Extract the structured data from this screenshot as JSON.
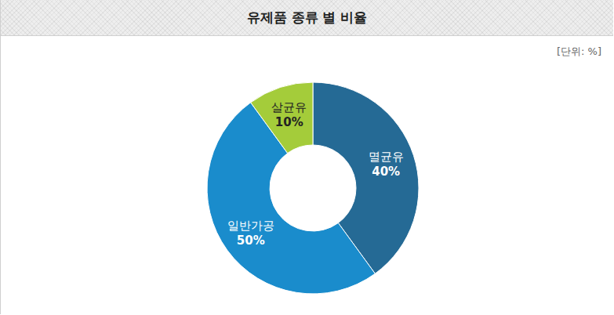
{
  "chart_data": {
    "type": "pie",
    "title": "유제품 종류 별 비율",
    "subtitle": "[단위: %]",
    "categories": [
      "멸균유",
      "일반가공",
      "살균유"
    ],
    "values": [
      40,
      50,
      10
    ],
    "value_labels": [
      "40%",
      "50%",
      "10%"
    ],
    "colors": [
      "#256a95",
      "#1a8ccc",
      "#a4cc3a"
    ],
    "data_labels": true
  }
}
